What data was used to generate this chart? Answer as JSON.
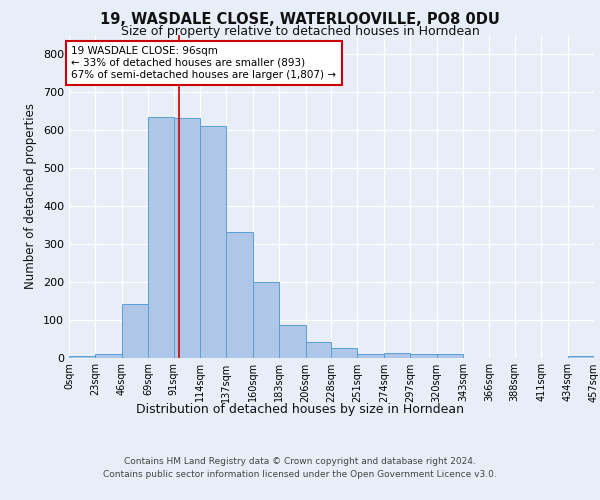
{
  "title1": "19, WASDALE CLOSE, WATERLOOVILLE, PO8 0DU",
  "title2": "Size of property relative to detached houses in Horndean",
  "xlabel": "Distribution of detached houses by size in Horndean",
  "ylabel": "Number of detached properties",
  "bin_edges": [
    0,
    23,
    46,
    69,
    91,
    114,
    137,
    160,
    183,
    206,
    228,
    251,
    274,
    297,
    320,
    343,
    366,
    388,
    411,
    434,
    457
  ],
  "bar_heights": [
    5,
    8,
    140,
    635,
    630,
    610,
    330,
    200,
    85,
    40,
    25,
    10,
    12,
    10,
    8,
    0,
    0,
    0,
    0,
    5
  ],
  "bar_color": "#aec6e8",
  "bar_edgecolor": "#5a9fd4",
  "property_size": 96,
  "annotation_line1": "19 WASDALE CLOSE: 96sqm",
  "annotation_line2": "← 33% of detached houses are smaller (893)",
  "annotation_line3": "67% of semi-detached houses are larger (1,807) →",
  "annotation_box_color": "#ffffff",
  "annotation_box_edgecolor": "#cc0000",
  "vline_color": "#cc0000",
  "footer_line1": "Contains HM Land Registry data © Crown copyright and database right 2024.",
  "footer_line2": "Contains public sector information licensed under the Open Government Licence v3.0.",
  "bg_color": "#e8eef7",
  "plot_bg_color": "#e8eef7",
  "grid_color": "#ffffff",
  "ylim": [
    0,
    850
  ],
  "yticks": [
    0,
    100,
    200,
    300,
    400,
    500,
    600,
    700,
    800
  ],
  "tick_labels": [
    "0sqm",
    "23sqm",
    "46sqm",
    "69sqm",
    "91sqm",
    "114sqm",
    "137sqm",
    "160sqm",
    "183sqm",
    "206sqm",
    "228sqm",
    "251sqm",
    "274sqm",
    "297sqm",
    "320sqm",
    "343sqm",
    "366sqm",
    "388sqm",
    "411sqm",
    "434sqm",
    "457sqm"
  ]
}
